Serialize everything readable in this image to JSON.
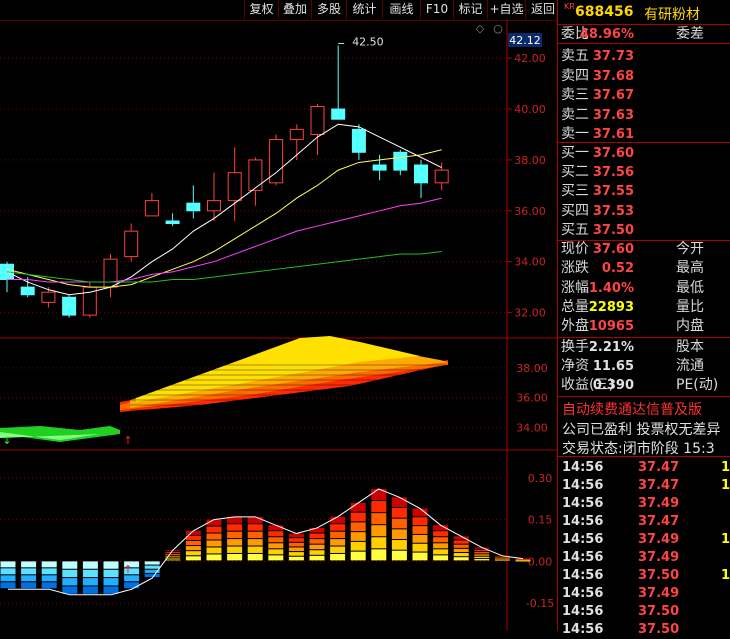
{
  "toolbar": [
    {
      "label": "复权",
      "name": "toolbar-restore-rights"
    },
    {
      "label": "叠加",
      "name": "toolbar-overlay"
    },
    {
      "label": "多股",
      "name": "toolbar-multi-stock"
    },
    {
      "label": "统计",
      "name": "toolbar-statistics"
    },
    {
      "label": "画线",
      "name": "toolbar-draw-line"
    },
    {
      "label": "F10",
      "name": "toolbar-f10"
    },
    {
      "label": "标记",
      "name": "toolbar-mark"
    },
    {
      "label": "+自选",
      "name": "toolbar-add-favorite"
    },
    {
      "label": "返回",
      "name": "toolbar-back"
    }
  ],
  "stock": {
    "badge": "KR",
    "code": "688456",
    "name": "有研粉材"
  },
  "price_axis": {
    "current": "42.12",
    "high_marker": "42.50"
  },
  "order_book": {
    "weibi": {
      "label": "委比",
      "value": "48.96%",
      "label2": "委差"
    },
    "sell": [
      {
        "label": "卖五",
        "price": "37.73"
      },
      {
        "label": "卖四",
        "price": "37.68"
      },
      {
        "label": "卖三",
        "price": "37.67"
      },
      {
        "label": "卖二",
        "price": "37.63"
      },
      {
        "label": "卖一",
        "price": "37.61"
      }
    ],
    "buy": [
      {
        "label": "买一",
        "price": "37.60"
      },
      {
        "label": "买二",
        "price": "37.56"
      },
      {
        "label": "买三",
        "price": "37.55"
      },
      {
        "label": "买四",
        "price": "37.53"
      },
      {
        "label": "买五",
        "price": "37.50"
      }
    ]
  },
  "quote": [
    {
      "label": "现价",
      "value": "37.60",
      "label2": "今开",
      "color": "#ff4444"
    },
    {
      "label": "涨跌",
      "value": "0.52",
      "label2": "最高",
      "color": "#ff4444"
    },
    {
      "label": "涨幅",
      "value": "1.40%",
      "label2": "最低",
      "color": "#ff4444"
    },
    {
      "label": "总量",
      "value": "22893",
      "label2": "量比",
      "color": "#ffff00"
    },
    {
      "label": "外盘",
      "value": "10965",
      "label2": "内盘",
      "color": "#ff4444"
    }
  ],
  "stats": [
    {
      "label": "换手",
      "value": "2.21%",
      "label2": "股本",
      "color": "#e0e0e0"
    },
    {
      "label": "净资",
      "value": "11.65",
      "label2": "流通",
      "color": "#e0e0e0"
    },
    {
      "label": "收益(三)",
      "value": "0.390",
      "label2": "PE(动)",
      "color": "#e0e0e0"
    }
  ],
  "notice": {
    "line1": "自动续费通达信普及版",
    "line2": "公司已盈利 投票权无差异"
  },
  "trade_status": {
    "label": "交易状态:",
    "value": "闭市阶段",
    "time": "15:3"
  },
  "trades": [
    {
      "time": "14:56",
      "price": "37.47",
      "vol": "1",
      "color": "#ff4444"
    },
    {
      "time": "14:56",
      "price": "37.47",
      "vol": "1",
      "color": "#ff4444"
    },
    {
      "time": "14:56",
      "price": "37.49",
      "vol": "",
      "color": "#ff4444"
    },
    {
      "time": "14:56",
      "price": "37.47",
      "vol": "",
      "color": "#ff4444"
    },
    {
      "time": "14:56",
      "price": "37.49",
      "vol": "1",
      "color": "#ff4444"
    },
    {
      "time": "14:56",
      "price": "37.49",
      "vol": "",
      "color": "#ff4444"
    },
    {
      "time": "14:56",
      "price": "37.50",
      "vol": "1",
      "color": "#ff4444"
    },
    {
      "time": "14:56",
      "price": "37.49",
      "vol": "",
      "color": "#ff4444"
    },
    {
      "time": "14:56",
      "price": "37.50",
      "vol": "",
      "color": "#ff4444"
    },
    {
      "time": "14:56",
      "price": "37.50",
      "vol": "",
      "color": "#ff4444"
    }
  ],
  "chart_data": [
    {
      "type": "candlestick",
      "yaxis_ticks": [
        "42.00",
        "40.00",
        "38.00",
        "36.00",
        "34.00",
        "32.00"
      ],
      "ylim": [
        31.0,
        43.5
      ],
      "candles": [
        {
          "o": 33.3,
          "h": 34.0,
          "l": 32.8,
          "c": 33.9,
          "up": false
        },
        {
          "o": 33.0,
          "h": 33.4,
          "l": 32.6,
          "c": 32.7,
          "up": false
        },
        {
          "o": 32.8,
          "h": 33.0,
          "l": 32.2,
          "c": 32.4,
          "up": true
        },
        {
          "o": 32.6,
          "h": 32.7,
          "l": 31.8,
          "c": 31.9,
          "up": false
        },
        {
          "o": 31.9,
          "h": 33.2,
          "l": 31.8,
          "c": 33.0,
          "up": true
        },
        {
          "o": 33.0,
          "h": 34.3,
          "l": 32.6,
          "c": 34.1,
          "up": true
        },
        {
          "o": 34.2,
          "h": 35.5,
          "l": 34.0,
          "c": 35.2,
          "up": true
        },
        {
          "o": 35.8,
          "h": 36.7,
          "l": 35.8,
          "c": 36.4,
          "up": true
        },
        {
          "o": 35.6,
          "h": 35.9,
          "l": 35.4,
          "c": 35.5,
          "up": false
        },
        {
          "o": 36.0,
          "h": 37.0,
          "l": 35.7,
          "c": 36.3,
          "up": false
        },
        {
          "o": 36.0,
          "h": 37.5,
          "l": 35.6,
          "c": 36.4,
          "up": true
        },
        {
          "o": 36.4,
          "h": 38.5,
          "l": 35.6,
          "c": 37.5,
          "up": true
        },
        {
          "o": 36.8,
          "h": 38.1,
          "l": 36.2,
          "c": 38.0,
          "up": true
        },
        {
          "o": 37.1,
          "h": 39.0,
          "l": 37.0,
          "c": 38.8,
          "up": true
        },
        {
          "o": 38.8,
          "h": 39.4,
          "l": 38.0,
          "c": 39.2,
          "up": true
        },
        {
          "o": 39.0,
          "h": 40.2,
          "l": 38.2,
          "c": 40.1,
          "up": true
        },
        {
          "o": 40.0,
          "h": 42.5,
          "l": 39.7,
          "c": 39.6,
          "up": false
        },
        {
          "o": 39.2,
          "h": 39.4,
          "l": 38.0,
          "c": 38.3,
          "up": false
        },
        {
          "o": 37.8,
          "h": 38.2,
          "l": 37.2,
          "c": 37.6,
          "up": false
        },
        {
          "o": 38.3,
          "h": 38.4,
          "l": 37.4,
          "c": 37.6,
          "up": false
        },
        {
          "o": 37.8,
          "h": 38.0,
          "l": 36.5,
          "c": 37.1,
          "up": false
        },
        {
          "o": 37.1,
          "h": 37.9,
          "l": 36.8,
          "c": 37.6,
          "up": true
        }
      ],
      "ma": [
        {
          "color": "#ffffff",
          "values": [
            33.6,
            33.2,
            32.9,
            32.7,
            32.8,
            33.0,
            33.4,
            34.0,
            34.5,
            35.2,
            35.7,
            36.3,
            36.9,
            37.5,
            38.2,
            38.9,
            39.4,
            39.3,
            38.9,
            38.5,
            38.1,
            37.7
          ]
        },
        {
          "color": "#ffff60",
          "values": [
            33.7,
            33.5,
            33.3,
            33.1,
            33.0,
            33.0,
            33.1,
            33.4,
            33.7,
            34.0,
            34.4,
            34.9,
            35.4,
            35.9,
            36.5,
            37.0,
            37.6,
            37.9,
            38.0,
            38.1,
            38.2,
            38.4
          ]
        },
        {
          "color": "#ff40ff",
          "values": [
            33.3,
            33.3,
            33.2,
            33.2,
            33.2,
            33.2,
            33.3,
            33.5,
            33.6,
            33.8,
            34.0,
            34.3,
            34.6,
            34.9,
            35.2,
            35.4,
            35.6,
            35.8,
            36.0,
            36.2,
            36.3,
            36.5
          ]
        },
        {
          "color": "#20c020",
          "values": [
            33.6,
            33.5,
            33.4,
            33.3,
            33.2,
            33.2,
            33.2,
            33.2,
            33.3,
            33.3,
            33.4,
            33.5,
            33.6,
            33.7,
            33.8,
            33.9,
            34.0,
            34.1,
            34.2,
            34.3,
            34.3,
            34.4
          ]
        }
      ]
    },
    {
      "type": "area",
      "yaxis_ticks": [
        "38.00",
        "36.00",
        "34.00"
      ],
      "ylim": [
        32.5,
        40.0
      ]
    },
    {
      "type": "bar",
      "yaxis_ticks": [
        "0.30",
        "0.15",
        "0.00",
        "-0.15"
      ],
      "ylim": [
        -0.25,
        0.4
      ],
      "values": [
        -0.1,
        -0.1,
        -0.1,
        -0.12,
        -0.12,
        -0.12,
        -0.1,
        -0.06,
        0.04,
        0.11,
        0.15,
        0.16,
        0.16,
        0.13,
        0.1,
        0.12,
        0.16,
        0.21,
        0.26,
        0.23,
        0.19,
        0.13,
        0.09,
        0.05,
        0.02,
        0.01
      ]
    }
  ]
}
